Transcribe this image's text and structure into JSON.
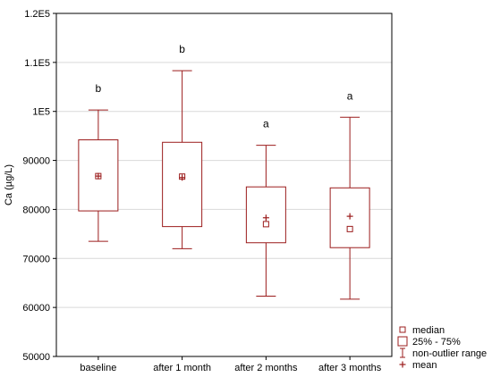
{
  "chart_data": {
    "type": "box",
    "ylabel": "Ca (µg/L)",
    "ylim": [
      50000,
      120000
    ],
    "yticks": [
      50000,
      60000,
      70000,
      80000,
      90000,
      100000,
      110000,
      120000
    ],
    "ytick_labels": [
      "50000",
      "60000",
      "70000",
      "80000",
      "90000",
      "1E5",
      "1.1E5",
      "1.2E5"
    ],
    "grid": true,
    "color": "#9b1c1c",
    "categories": [
      "baseline",
      "after 1 month",
      "after 2 months",
      "after 3 months"
    ],
    "boxes": [
      {
        "min": 73500,
        "q1": 79700,
        "median": 86800,
        "mean": 86800,
        "q3": 94200,
        "max": 100300,
        "label": "b"
      },
      {
        "min": 72000,
        "q1": 76500,
        "median": 86700,
        "mean": 86500,
        "q3": 93700,
        "max": 108300,
        "label": "b"
      },
      {
        "min": 62300,
        "q1": 73200,
        "median": 77000,
        "mean": 78300,
        "q3": 84600,
        "max": 93100,
        "label": "a"
      },
      {
        "min": 61700,
        "q1": 72200,
        "median": 76000,
        "mean": 78600,
        "q3": 84400,
        "max": 98800,
        "label": "a"
      }
    ],
    "legend": {
      "position": "bottom-right",
      "entries": [
        "median",
        "25% - 75%",
        "non-outlier range",
        "mean"
      ]
    }
  }
}
